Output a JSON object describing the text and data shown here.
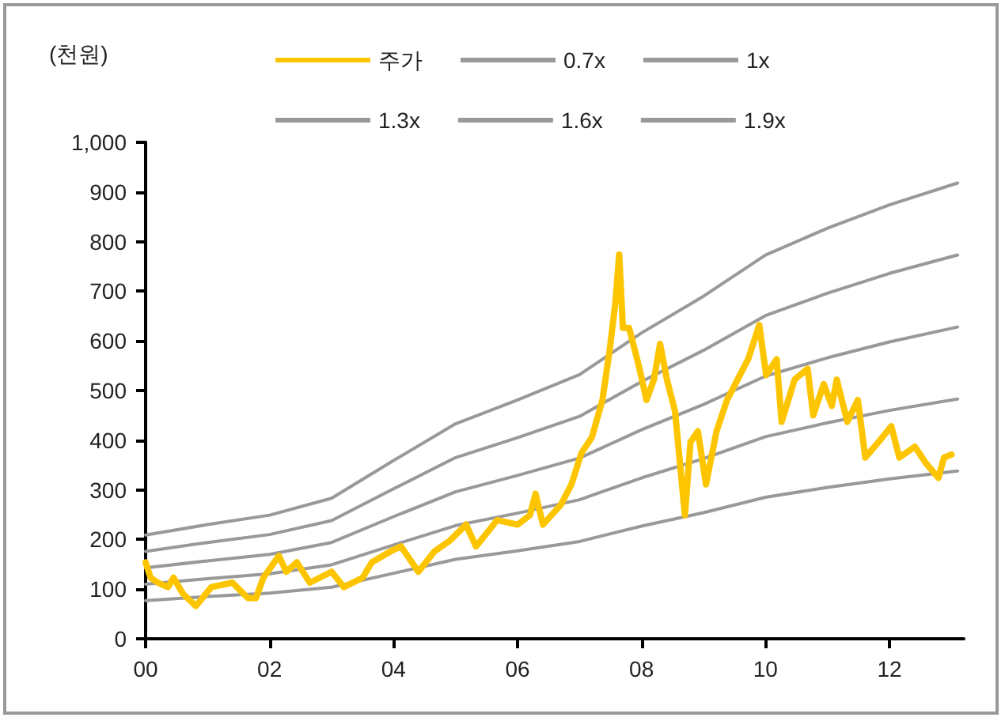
{
  "chart_data": {
    "type": "line",
    "ylabel": "(천원)",
    "xlim": [
      2000,
      2013.2
    ],
    "xticks": [
      {
        "value": 2000,
        "label": "00"
      },
      {
        "value": 2002,
        "label": "02"
      },
      {
        "value": 2004,
        "label": "04"
      },
      {
        "value": 2006,
        "label": "06"
      },
      {
        "value": 2008,
        "label": "08"
      },
      {
        "value": 2010,
        "label": "10"
      },
      {
        "value": 2012,
        "label": "12"
      }
    ],
    "ylim": [
      0,
      1000
    ],
    "yticks": [
      0,
      100,
      200,
      300,
      400,
      500,
      600,
      700,
      800,
      900,
      {
        "value": 1000,
        "label": "1,000"
      }
    ],
    "grid": false,
    "legend": "top",
    "marker": "none",
    "line_style": "solid",
    "series": [
      {
        "name": "주가",
        "color": "#fdc500",
        "x": [
          2000.0,
          2000.08,
          2000.2,
          2000.36,
          2000.45,
          2000.6,
          2000.81,
          2001.06,
          2001.4,
          2001.65,
          2001.78,
          2001.9,
          2002.15,
          2002.27,
          2002.44,
          2002.65,
          2003.0,
          2003.2,
          2003.5,
          2003.65,
          2003.95,
          2004.12,
          2004.4,
          2004.66,
          2004.91,
          2005.17,
          2005.33,
          2005.67,
          2006.0,
          2006.2,
          2006.29,
          2006.41,
          2006.7,
          2006.87,
          2007.03,
          2007.2,
          2007.37,
          2007.49,
          2007.58,
          2007.64,
          2007.7,
          2007.8,
          2007.95,
          2008.08,
          2008.2,
          2008.3,
          2008.41,
          2008.54,
          2008.7,
          2008.79,
          2008.91,
          2009.04,
          2009.21,
          2009.38,
          2009.55,
          2009.72,
          2009.9,
          2010.01,
          2010.18,
          2010.26,
          2010.47,
          2010.68,
          2010.77,
          2010.94,
          2011.07,
          2011.15,
          2011.32,
          2011.49,
          2011.61,
          2011.82,
          2012.03,
          2012.16,
          2012.41,
          2012.58,
          2012.79,
          2012.88,
          2013.0
        ],
        "values": [
          154,
          123,
          113,
          104,
          123,
          91,
          66,
          104,
          113,
          82,
          82,
          123,
          167,
          135,
          154,
          113,
          135,
          104,
          123,
          154,
          176,
          186,
          135,
          176,
          198,
          230,
          186,
          239,
          230,
          249,
          292,
          230,
          270,
          311,
          374,
          406,
          481,
          585,
          679,
          774,
          626,
          626,
          553,
          481,
          522,
          594,
          522,
          459,
          249,
          396,
          418,
          311,
          418,
          481,
          522,
          563,
          632,
          531,
          563,
          437,
          522,
          544,
          450,
          513,
          469,
          522,
          437,
          481,
          365,
          396,
          428,
          365,
          387,
          355,
          324,
          365,
          371
        ]
      },
      {
        "name": "0.7x",
        "color": "#999999",
        "x": [
          2000,
          2001,
          2002,
          2003,
          2004,
          2005,
          2006,
          2007,
          2008,
          2009,
          2010,
          2011,
          2012,
          2013.1
        ],
        "values": [
          77,
          85,
          92,
          104,
          132,
          160,
          177,
          196,
          227,
          254,
          285,
          305,
          322,
          338
        ]
      },
      {
        "name": "1x",
        "color": "#999999",
        "x": [
          2000,
          2001,
          2002,
          2003,
          2004,
          2005,
          2006,
          2007,
          2008,
          2009,
          2010,
          2011,
          2012,
          2013.1
        ],
        "values": [
          110,
          121,
          131,
          149,
          189,
          228,
          253,
          280,
          324,
          363,
          407,
          435,
          460,
          483
        ]
      },
      {
        "name": "1.3x",
        "color": "#999999",
        "x": [
          2000,
          2001,
          2002,
          2003,
          2004,
          2005,
          2006,
          2007,
          2008,
          2009,
          2010,
          2011,
          2012,
          2013.1
        ],
        "values": [
          143,
          157,
          170,
          194,
          246,
          296,
          329,
          364,
          421,
          472,
          529,
          566,
          598,
          628
        ]
      },
      {
        "name": "1.6x",
        "color": "#999999",
        "x": [
          2000,
          2001,
          2002,
          2003,
          2004,
          2005,
          2006,
          2007,
          2008,
          2009,
          2010,
          2011,
          2012,
          2013.1
        ],
        "values": [
          176,
          194,
          210,
          238,
          302,
          365,
          405,
          448,
          518,
          581,
          651,
          696,
          736,
          773
        ]
      },
      {
        "name": "1.9x",
        "color": "#999999",
        "x": [
          2000,
          2001,
          2002,
          2003,
          2004,
          2005,
          2006,
          2007,
          2008,
          2009,
          2010,
          2011,
          2012,
          2013.1
        ],
        "values": [
          209,
          230,
          249,
          283,
          359,
          433,
          481,
          532,
          616,
          690,
          773,
          827,
          874,
          918
        ]
      }
    ]
  }
}
